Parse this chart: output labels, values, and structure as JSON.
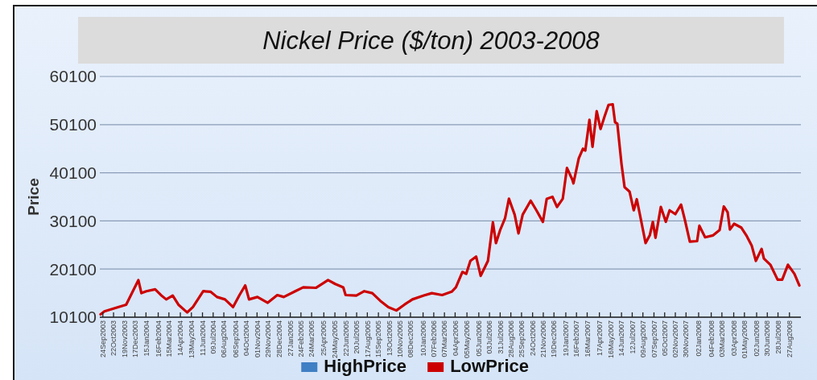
{
  "chart_data": {
    "type": "line",
    "title": "Nickel Price ($/ton) 2003-2008",
    "ylabel": "Price",
    "x": [
      "2003-09-18",
      "2003-09-28",
      "2003-11-03",
      "2003-11-24",
      "2003-12-11",
      "2003-12-26",
      "2004-01-03",
      "2004-01-16",
      "2004-02-08",
      "2004-02-23",
      "2004-03-08",
      "2004-03-25",
      "2004-04-09",
      "2004-04-26",
      "2004-05-02",
      "2004-05-17",
      "2004-06-13",
      "2004-07-02",
      "2004-07-19",
      "2004-08-09",
      "2004-08-30",
      "2004-09-16",
      "2004-10-01",
      "2004-10-11",
      "2004-11-02",
      "2004-11-29",
      "2004-12-24",
      "2005-01-10",
      "2005-02-09",
      "2005-03-02",
      "2005-04-04",
      "2005-05-06",
      "2005-05-25",
      "2005-06-15",
      "2005-06-21",
      "2005-07-19",
      "2005-08-09",
      "2005-08-30",
      "2005-09-20",
      "2005-10-11",
      "2005-11-01",
      "2005-11-22",
      "2005-12-13",
      "2006-01-12",
      "2006-02-02",
      "2006-03-01",
      "2006-03-26",
      "2006-04-06",
      "2006-04-23",
      "2006-05-03",
      "2006-05-14",
      "2006-05-29",
      "2006-06-10",
      "2006-06-29",
      "2006-07-12",
      "2006-07-20",
      "2006-07-31",
      "2006-08-13",
      "2006-08-23",
      "2006-09-07",
      "2006-09-17",
      "2006-09-28",
      "2006-10-19",
      "2006-11-03",
      "2006-11-20",
      "2006-11-30",
      "2006-12-15",
      "2006-12-27",
      "2007-01-11",
      "2007-01-22",
      "2007-02-05",
      "2007-02-08",
      "2007-02-22",
      "2007-03-05",
      "2007-03-11",
      "2007-03-22",
      "2007-03-30",
      "2007-04-10",
      "2007-04-20",
      "2007-05-01",
      "2007-05-11",
      "2007-05-22",
      "2007-05-28",
      "2007-06-03",
      "2007-06-14",
      "2007-06-22",
      "2007-07-05",
      "2007-07-16",
      "2007-07-24",
      "2007-08-04",
      "2007-08-16",
      "2007-08-27",
      "2007-09-04",
      "2007-09-11",
      "2007-09-25",
      "2007-10-08",
      "2007-10-18",
      "2007-11-02",
      "2007-11-17",
      "2007-11-27",
      "2007-12-10",
      "2007-12-29",
      "2008-01-04",
      "2008-01-19",
      "2008-02-09",
      "2008-02-26",
      "2008-03-08",
      "2008-03-18",
      "2008-03-24",
      "2008-04-04",
      "2008-04-23",
      "2008-05-06",
      "2008-05-20",
      "2008-05-31",
      "2008-06-15",
      "2008-06-21",
      "2008-07-08",
      "2008-07-27",
      "2008-08-08",
      "2008-08-23",
      "2008-09-09",
      "2008-09-22"
    ],
    "series": [
      {
        "name": "HighPrice",
        "color": "#3f7fc4",
        "values": [
          null,
          null,
          null,
          null,
          null,
          null,
          null,
          null,
          null,
          null,
          null,
          null,
          null,
          null,
          null,
          null,
          null,
          null,
          null,
          null,
          null,
          null,
          null,
          null,
          null,
          null,
          null,
          null,
          null,
          null,
          null,
          null,
          null,
          null,
          null,
          null,
          null,
          null,
          null,
          null,
          null,
          null,
          null,
          null,
          null,
          null,
          null,
          null,
          null,
          null,
          null,
          null,
          null,
          null,
          null,
          null,
          null,
          null,
          null,
          null,
          null,
          null,
          null,
          null,
          null,
          null,
          null,
          null,
          null,
          null,
          null,
          null,
          null,
          null,
          null,
          null,
          null,
          null,
          null,
          null,
          null,
          null,
          null,
          null,
          null,
          null,
          null,
          null,
          null,
          null,
          null,
          null,
          null,
          null,
          null,
          null,
          null,
          null,
          null,
          null,
          null,
          null,
          null,
          null,
          null,
          null,
          null,
          null,
          null,
          null,
          null,
          null,
          null,
          null,
          null,
          null,
          null,
          null,
          null,
          null,
          null,
          null
        ]
      },
      {
        "name": "LowPrice",
        "color": "#cc0000",
        "values": [
          10700,
          11300,
          12200,
          12700,
          15400,
          17800,
          15100,
          15500,
          15900,
          14700,
          13800,
          14600,
          12700,
          11500,
          11100,
          12200,
          15500,
          15400,
          14300,
          13800,
          12200,
          14700,
          16700,
          13800,
          14300,
          13100,
          14700,
          14300,
          15500,
          16300,
          16200,
          17800,
          17000,
          16300,
          14700,
          14600,
          15500,
          15100,
          13500,
          12200,
          11500,
          12700,
          13800,
          14600,
          15100,
          14700,
          15400,
          16300,
          19500,
          19100,
          21800,
          22700,
          18700,
          21800,
          29800,
          25500,
          28200,
          30700,
          34700,
          31400,
          27500,
          31400,
          34300,
          32300,
          29900,
          34700,
          35100,
          33000,
          34700,
          41100,
          38700,
          37900,
          43100,
          45100,
          44700,
          51100,
          45500,
          52900,
          49200,
          51900,
          54200,
          54300,
          50600,
          50300,
          41900,
          37100,
          36200,
          32300,
          34600,
          30300,
          25500,
          27100,
          29900,
          26600,
          33000,
          29900,
          32300,
          31500,
          33500,
          30300,
          25800,
          25900,
          29100,
          26700,
          27100,
          28200,
          33100,
          31900,
          28300,
          29500,
          28700,
          27100,
          25000,
          21800,
          24300,
          22300,
          21000,
          17900,
          17900,
          21000,
          19100,
          16700
        ]
      }
    ],
    "xlim": [
      "2003-09-16",
      "2008-09-26"
    ],
    "ylim": [
      10100,
      60100
    ],
    "yticks": [
      10100,
      20100,
      30100,
      40100,
      50100,
      60100
    ],
    "xticks": [
      {
        "value": "2003-09-24",
        "label": "24Sep2003"
      },
      {
        "value": "2003-10-22",
        "label": "22Oct2003"
      },
      {
        "value": "2003-11-19",
        "label": "19Nov2003"
      },
      {
        "value": "2003-12-17",
        "label": "17Dec2003"
      },
      {
        "value": "2004-01-15",
        "label": "15Jan2004"
      },
      {
        "value": "2004-02-16",
        "label": "16Feb2004"
      },
      {
        "value": "2004-03-15",
        "label": "15Mar2004"
      },
      {
        "value": "2004-04-14",
        "label": "14Apr2004"
      },
      {
        "value": "2004-05-13",
        "label": "13May2004"
      },
      {
        "value": "2004-06-11",
        "label": "11Jun2004"
      },
      {
        "value": "2004-07-09",
        "label": "09Jul2004"
      },
      {
        "value": "2004-08-06",
        "label": "06Aug2004"
      },
      {
        "value": "2004-09-06",
        "label": "06Sep2004"
      },
      {
        "value": "2004-10-04",
        "label": "04Oct2004"
      },
      {
        "value": "2004-11-01",
        "label": "01Nov2004"
      },
      {
        "value": "2004-11-29",
        "label": "29Nov2004"
      },
      {
        "value": "2004-12-28",
        "label": "28Dec2004"
      },
      {
        "value": "2005-01-27",
        "label": "27Jan2005"
      },
      {
        "value": "2005-02-24",
        "label": "24Feb2005"
      },
      {
        "value": "2005-03-24",
        "label": "24Mar2005"
      },
      {
        "value": "2005-04-25",
        "label": "25Apr2005"
      },
      {
        "value": "2005-05-24",
        "label": "24May2005"
      },
      {
        "value": "2005-06-22",
        "label": "22Jun2005"
      },
      {
        "value": "2005-07-20",
        "label": "20Jul2005"
      },
      {
        "value": "2005-08-17",
        "label": "17Aug2005"
      },
      {
        "value": "2005-09-15",
        "label": "15Sep2005"
      },
      {
        "value": "2005-10-13",
        "label": "13Oct2005"
      },
      {
        "value": "2005-11-10",
        "label": "10Nov2005"
      },
      {
        "value": "2005-12-08",
        "label": "08Dec2005"
      },
      {
        "value": "2006-01-10",
        "label": "10Jan2006"
      },
      {
        "value": "2006-02-07",
        "label": "07Feb2006"
      },
      {
        "value": "2006-03-07",
        "label": "07Mar2006"
      },
      {
        "value": "2006-04-04",
        "label": "04Apr2006"
      },
      {
        "value": "2006-05-05",
        "label": "05May2006"
      },
      {
        "value": "2006-06-05",
        "label": "05Jun2006"
      },
      {
        "value": "2006-07-03",
        "label": "03Jul2006"
      },
      {
        "value": "2006-07-31",
        "label": "31Jul2006"
      },
      {
        "value": "2006-08-28",
        "label": "28Aug2006"
      },
      {
        "value": "2006-09-25",
        "label": "25Sep2006"
      },
      {
        "value": "2006-10-24",
        "label": "24Oct2006"
      },
      {
        "value": "2006-11-21",
        "label": "21Nov2006"
      },
      {
        "value": "2006-12-19",
        "label": "19Dec2006"
      },
      {
        "value": "2007-01-19",
        "label": "19Jan2007"
      },
      {
        "value": "2007-02-16",
        "label": "16Feb2007"
      },
      {
        "value": "2007-03-16",
        "label": "16Mar2007"
      },
      {
        "value": "2007-04-17",
        "label": "17Apr2007"
      },
      {
        "value": "2007-05-16",
        "label": "16May2007"
      },
      {
        "value": "2007-06-14",
        "label": "14Jun2007"
      },
      {
        "value": "2007-07-12",
        "label": "12Jul2007"
      },
      {
        "value": "2007-08-09",
        "label": "09Aug2007"
      },
      {
        "value": "2007-09-07",
        "label": "07Sep2007"
      },
      {
        "value": "2007-10-05",
        "label": "05Oct2007"
      },
      {
        "value": "2007-11-02",
        "label": "02Nov2007"
      },
      {
        "value": "2007-11-30",
        "label": "30Nov2007"
      },
      {
        "value": "2008-01-02",
        "label": "02Jan2008"
      },
      {
        "value": "2008-02-04",
        "label": "04Feb2008"
      },
      {
        "value": "2008-03-03",
        "label": "03Mar2008"
      },
      {
        "value": "2008-04-03",
        "label": "03Apr2008"
      },
      {
        "value": "2008-05-01",
        "label": "01May2008"
      },
      {
        "value": "2008-06-02",
        "label": "02Jun2008"
      },
      {
        "value": "2008-06-30",
        "label": "30Jun2008"
      },
      {
        "value": "2008-07-28",
        "label": "28Jul2008"
      },
      {
        "value": "2008-08-27",
        "label": "27Aug2008"
      }
    ],
    "grid": "y",
    "legend": "bottom",
    "line_style": "solid"
  }
}
